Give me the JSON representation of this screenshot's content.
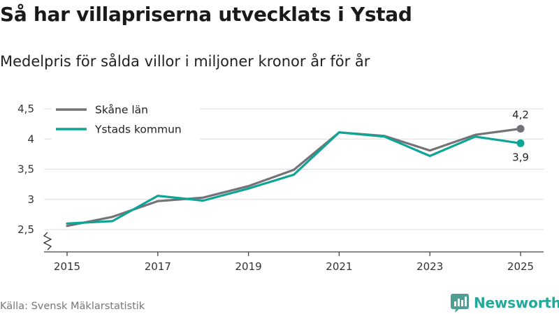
{
  "header": {
    "title": "Så har villapriserna utvecklats i Ystad",
    "subtitle": "Medelpris för sålda villor i miljoner kronor år för år"
  },
  "footer": {
    "source": "Källa: Svensk Mäklarstatistik",
    "brand": "Newsworthy",
    "brand_icon": "newsworthy-logo-icon"
  },
  "colors": {
    "skane": "#747278",
    "ystad": "#0ea596",
    "grid": "#dddddd",
    "axis": "#444444"
  },
  "chart_data": {
    "type": "line",
    "title": "Så har villapriserna utvecklats i Ystad",
    "subtitle": "Medelpris för sålda villor i miljoner kronor år för år",
    "xlabel": "",
    "ylabel": "",
    "x": [
      2015,
      2016,
      2017,
      2018,
      2019,
      2020,
      2021,
      2022,
      2023,
      2024,
      2025
    ],
    "xticks": [
      2015,
      2017,
      2019,
      2021,
      2023,
      2025
    ],
    "xtick_labels": [
      "2015",
      "2017",
      "2019",
      "2021",
      "2023",
      "2025"
    ],
    "ylim": [
      2.5,
      4.5
    ],
    "yticks": [
      2.5,
      3,
      3.5,
      4,
      4.5
    ],
    "ytick_labels": [
      "2,5",
      "3",
      "3,5",
      "4",
      "4,5"
    ],
    "y_axis_break": true,
    "grid": true,
    "legend": "top-left",
    "series": [
      {
        "name": "Skåne län",
        "color_key": "skane",
        "values": [
          2.56,
          2.71,
          2.97,
          3.03,
          3.22,
          3.49,
          4.11,
          4.05,
          3.81,
          4.07,
          4.17
        ],
        "end_label": "4,2",
        "end_label_position": "above"
      },
      {
        "name": "Ystads kommun",
        "color_key": "ystad",
        "values": [
          2.6,
          2.64,
          3.06,
          2.98,
          3.18,
          3.41,
          4.11,
          4.04,
          3.72,
          4.04,
          3.93
        ],
        "end_label": "3,9",
        "end_label_position": "below"
      }
    ]
  }
}
